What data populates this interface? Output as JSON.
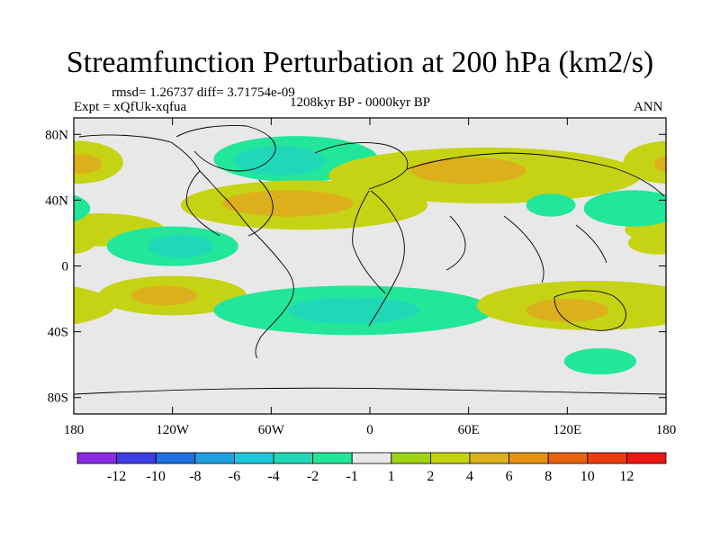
{
  "title": "Streamfunction Perturbation at 200 hPa (km2/s)",
  "stats": {
    "rmsd_label": "rmsd= 1.26737 diff= 3.71754e-09"
  },
  "experiment": "Expt = xQfUk-xqfua",
  "period": "1208kyr BP - 0000kyr BP",
  "season": "ANN",
  "axes": {
    "y_ticks": [
      {
        "value": 80,
        "label": "80N"
      },
      {
        "value": 40,
        "label": "40N"
      },
      {
        "value": 0,
        "label": "0"
      },
      {
        "value": -40,
        "label": "40S"
      },
      {
        "value": -80,
        "label": "80S"
      }
    ],
    "x_ticks": [
      {
        "value": -180,
        "label": "180"
      },
      {
        "value": -120,
        "label": "120W"
      },
      {
        "value": -60,
        "label": "60W"
      },
      {
        "value": 0,
        "label": "0"
      },
      {
        "value": 60,
        "label": "60E"
      },
      {
        "value": 120,
        "label": "120E"
      },
      {
        "value": 180,
        "label": "180"
      }
    ]
  },
  "colorbar": {
    "colors": [
      "#8a2be2",
      "#3d3de6",
      "#1f6fe0",
      "#20a0e0",
      "#1cc8dc",
      "#20d8b8",
      "#22e69a",
      "#e8e8e8",
      "#9ed414",
      "#c6d314",
      "#dcb01c",
      "#e89214",
      "#e8640f",
      "#e83c0f",
      "#ee1515"
    ],
    "labels": [
      "-12",
      "-10",
      "-8",
      "-6",
      "-4",
      "-2",
      "-1",
      "1",
      "2",
      "4",
      "6",
      "8",
      "10",
      "12"
    ]
  },
  "chart_data": {
    "type": "heatmap",
    "title": "Streamfunction Perturbation at 200 hPa (km2/s)",
    "projection": "cylindrical-equidistant",
    "xlim": [
      -180,
      180
    ],
    "ylim": [
      -90,
      90
    ],
    "contour_levels": [
      -12,
      -10,
      -8,
      -6,
      -4,
      -2,
      -1,
      1,
      2,
      4,
      6,
      8,
      10,
      12
    ],
    "regions": [
      {
        "name": "north-atlantic-greenland-low",
        "lon": -45,
        "lat": 65,
        "rlon": 50,
        "rlat": 14,
        "value": -2
      },
      {
        "name": "north-atlantic-greenland-low-core",
        "lon": -55,
        "lat": 64,
        "rlon": 28,
        "rlat": 9,
        "value": -4
      },
      {
        "name": "north-pacific-high",
        "lon": -178,
        "lat": 63,
        "rlon": 28,
        "rlat": 13,
        "value": 2
      },
      {
        "name": "north-pacific-high-core",
        "lon": -175,
        "lat": 62,
        "rlon": 12,
        "rlat": 6,
        "value": 4
      },
      {
        "name": "eurasia-high",
        "lon": 70,
        "lat": 55,
        "rlon": 95,
        "rlat": 17,
        "value": 2
      },
      {
        "name": "central-asia-high-core",
        "lon": 60,
        "lat": 58,
        "rlon": 35,
        "rlat": 8,
        "value": 4
      },
      {
        "name": "subtropical-atlantic-high",
        "lon": -40,
        "lat": 37,
        "rlon": 75,
        "rlat": 15,
        "value": 2
      },
      {
        "name": "subtropical-atlantic-high-core",
        "lon": -50,
        "lat": 38,
        "rlon": 40,
        "rlat": 8,
        "value": 4
      },
      {
        "name": "north-east-pacific-high",
        "lon": -165,
        "lat": 22,
        "rlon": 40,
        "rlat": 10,
        "value": 2
      },
      {
        "name": "central-america-low",
        "lon": -120,
        "lat": 12,
        "rlon": 40,
        "rlat": 12,
        "value": -2
      },
      {
        "name": "central-america-low-core",
        "lon": -115,
        "lat": 12,
        "rlon": 20,
        "rlat": 7,
        "value": -4
      },
      {
        "name": "south-pacific-high",
        "lon": -120,
        "lat": -18,
        "rlon": 45,
        "rlat": 12,
        "value": 2
      },
      {
        "name": "south-pacific-high-core",
        "lon": -125,
        "lat": -18,
        "rlon": 20,
        "rlat": 6,
        "value": 4
      },
      {
        "name": "south-atlantic-low",
        "lon": -10,
        "lat": -27,
        "rlon": 85,
        "rlat": 15,
        "value": -2
      },
      {
        "name": "south-atlantic-low-core",
        "lon": -10,
        "lat": -27,
        "rlon": 40,
        "rlat": 8,
        "value": -4
      },
      {
        "name": "indo-pacific-high",
        "lon": 135,
        "lat": -24,
        "rlon": 70,
        "rlat": 15,
        "value": 2
      },
      {
        "name": "indo-pacific-high-core",
        "lon": 120,
        "lat": -27,
        "rlon": 25,
        "rlat": 7,
        "value": 4
      },
      {
        "name": "west-pacific-low",
        "lon": 160,
        "lat": 35,
        "rlon": 30,
        "rlat": 11,
        "value": -2
      },
      {
        "name": "north-indian-low",
        "lon": 110,
        "lat": 37,
        "rlon": 15,
        "rlat": 7,
        "value": -2
      },
      {
        "name": "south-ocean-low",
        "lon": 140,
        "lat": -58,
        "rlon": 22,
        "rlat": 8,
        "value": -2
      },
      {
        "name": "dateline-east-high",
        "lon": 175,
        "lat": 14,
        "rlon": 18,
        "rlat": 7,
        "value": 2
      }
    ]
  }
}
